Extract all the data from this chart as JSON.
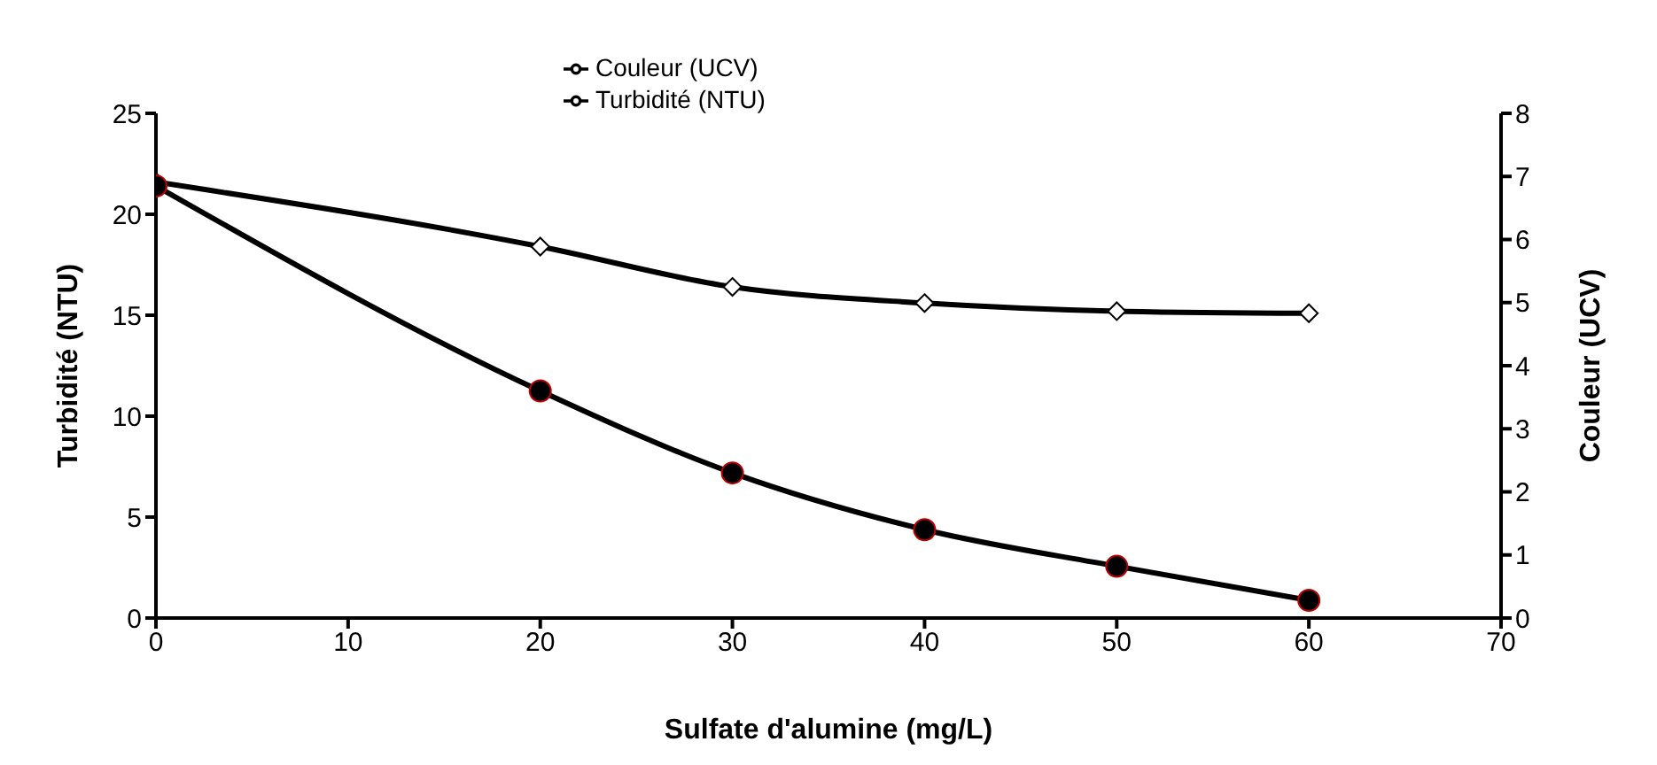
{
  "chart_data": {
    "type": "line",
    "xlabel": "Sulfate d'alumine (mg/L)",
    "ylabel": "Turbidité (NTU)",
    "y2label": "Couleur (UCV)",
    "x": [
      0,
      20,
      30,
      40,
      50,
      60
    ],
    "series": [
      {
        "name": "Turbidité (NTU)",
        "color": "#000000",
        "marker": "diamond",
        "values": [
          21.6,
          18.4,
          16.4,
          15.6,
          15.2,
          15.1
        ]
      },
      {
        "name": "Couleur (UCV)",
        "color": "#000000",
        "marker": "circle",
        "axis": "y2",
        "values": [
          6.85,
          3.6,
          2.3,
          1.4,
          0.82,
          0.28
        ]
      }
    ],
    "xlim": [
      0,
      70
    ],
    "xticks": [
      0,
      10,
      20,
      30,
      40,
      50,
      60,
      70
    ],
    "ylim": [
      0,
      25
    ],
    "yticks": [
      0,
      5,
      10,
      15,
      20,
      25
    ],
    "y2lim": [
      0,
      8
    ],
    "y2ticks": [
      0,
      1,
      2,
      3,
      4,
      5,
      6,
      7,
      8
    ],
    "grid": false,
    "legend": "top"
  }
}
